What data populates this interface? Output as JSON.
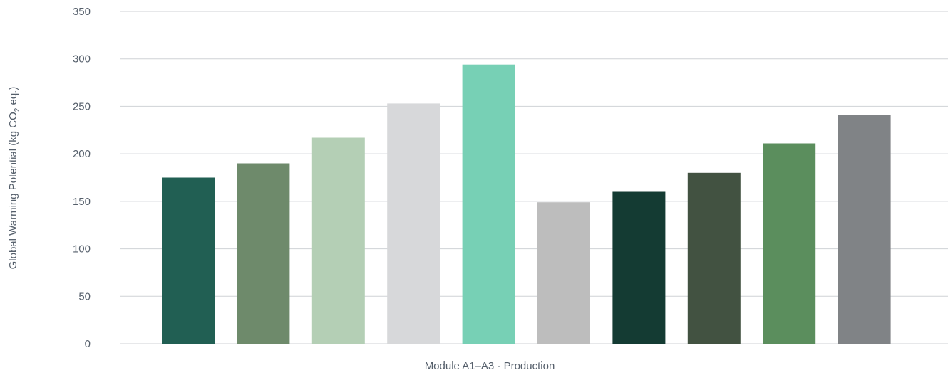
{
  "chart_data": {
    "type": "bar",
    "title": "",
    "xlabel": "Module A1–A3 - Production",
    "ylabel_prefix": "Global Warming Potential (kg CO",
    "ylabel_sub": "2",
    "ylabel_suffix": " eq.)",
    "ylim": [
      0,
      350
    ],
    "yticks": [
      0,
      50,
      100,
      150,
      200,
      250,
      300,
      350
    ],
    "grid": true,
    "legend": "none",
    "values": [
      175,
      190,
      217,
      253,
      294,
      149,
      160,
      180,
      211,
      241
    ],
    "colors": [
      "#215f53",
      "#6e8a6b",
      "#b4cfb5",
      "#d7d8da",
      "#77d0b5",
      "#bdbdbd",
      "#143b33",
      "#425241",
      "#5b8e5d",
      "#808386"
    ]
  }
}
